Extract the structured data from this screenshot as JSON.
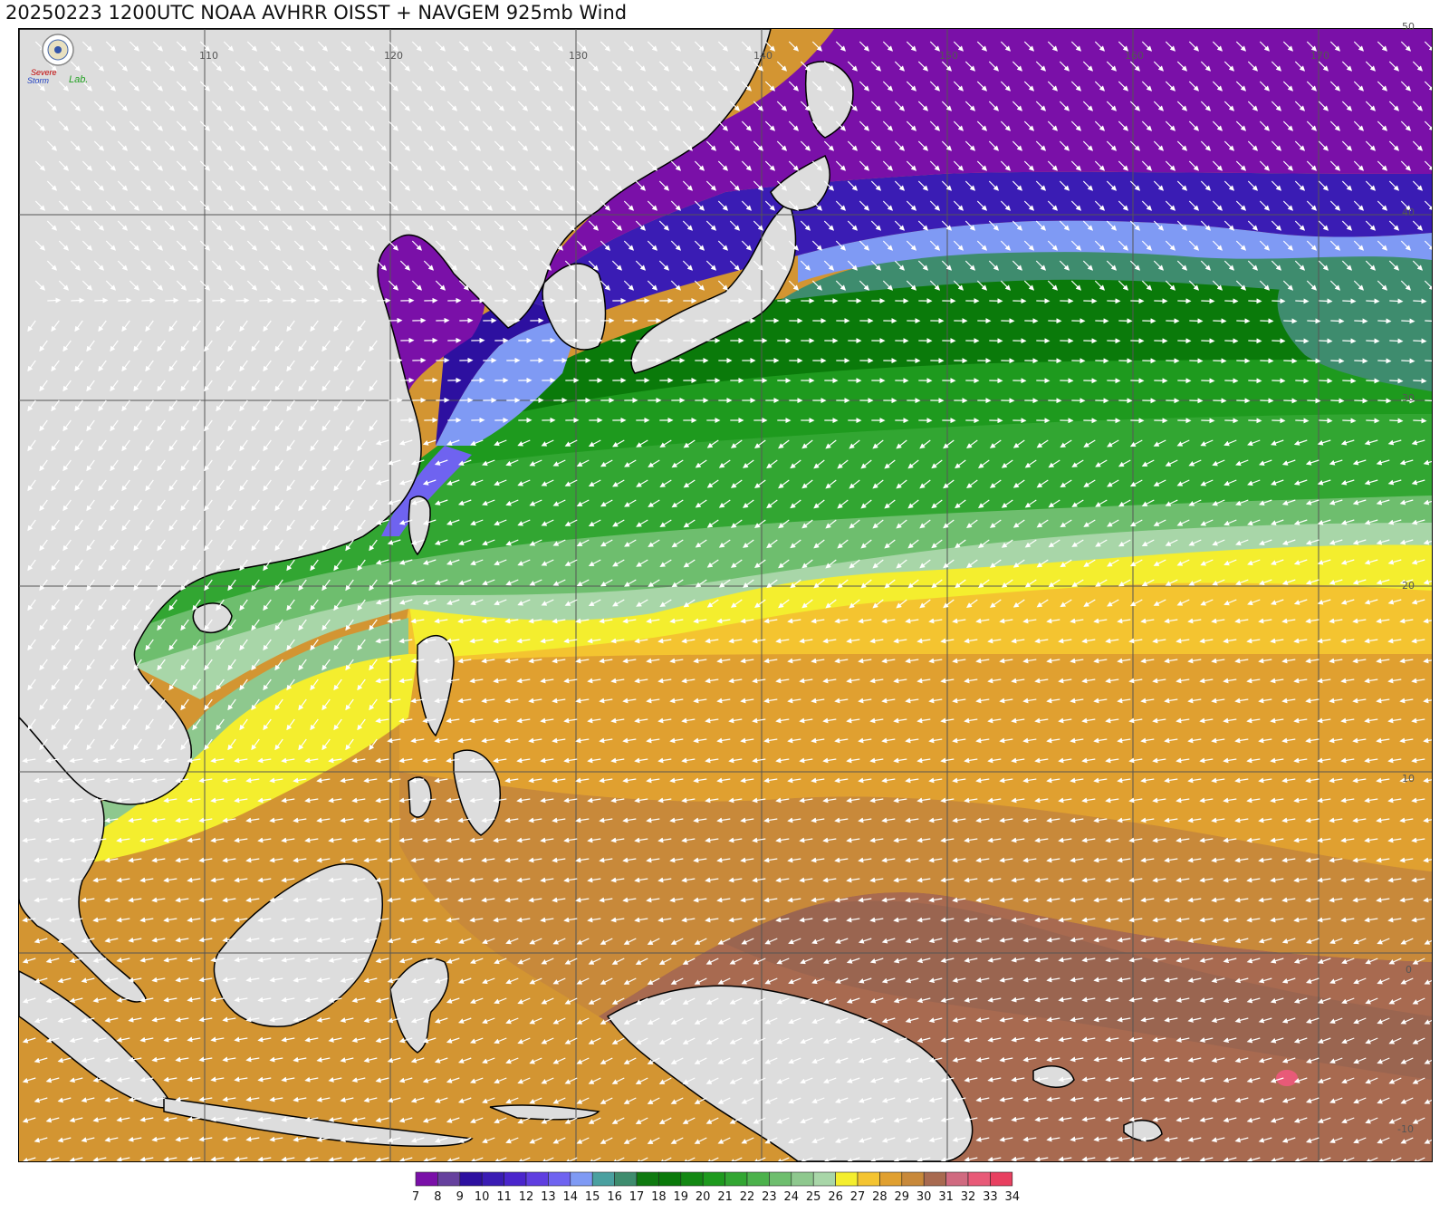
{
  "title": "20250223 1200UTC NOAA AVHRR OISST + NAVGEM 925mb Wind",
  "logo": {
    "line1": "Severe",
    "line2": "Storm",
    "line3": "Lab."
  },
  "map": {
    "projection": "equirectangular",
    "lon_range": [
      100,
      175
    ],
    "lat_range": [
      -10,
      50
    ],
    "lon_labels": [
      "110",
      "120",
      "130",
      "140",
      "150",
      "160",
      "170"
    ],
    "lat_labels": [
      "50",
      "40",
      "30",
      "20",
      "10",
      "0",
      "-10"
    ],
    "colors": {
      "land": "#dddddd",
      "coast": "#000000",
      "grid": "#555555",
      "wind": "#ffffff"
    }
  },
  "colorbar": {
    "labels": [
      "7",
      "8",
      "9",
      "10",
      "11",
      "12",
      "13",
      "14",
      "15",
      "16",
      "17",
      "18",
      "19",
      "20",
      "21",
      "22",
      "23",
      "24",
      "25",
      "26",
      "27",
      "28",
      "29",
      "30",
      "31",
      "32",
      "33",
      "34"
    ],
    "colors": [
      "#7a10a8",
      "#66419e",
      "#2d10a0",
      "#3a1cb4",
      "#4a25cc",
      "#5f3ee0",
      "#6f63f0",
      "#7f9af4",
      "#4aa0a0",
      "#3e8c6e",
      "#0f7a10",
      "#0a7a0a",
      "#138813",
      "#1e9a1e",
      "#32a632",
      "#4cb24c",
      "#6ebe6e",
      "#8ec88e",
      "#a8d6a8",
      "#f4ee2e",
      "#f4c430",
      "#e0a030",
      "#c8893a",
      "#a86a50",
      "#d06a80",
      "#e85a78",
      "#e84060",
      "#d02840"
    ]
  }
}
